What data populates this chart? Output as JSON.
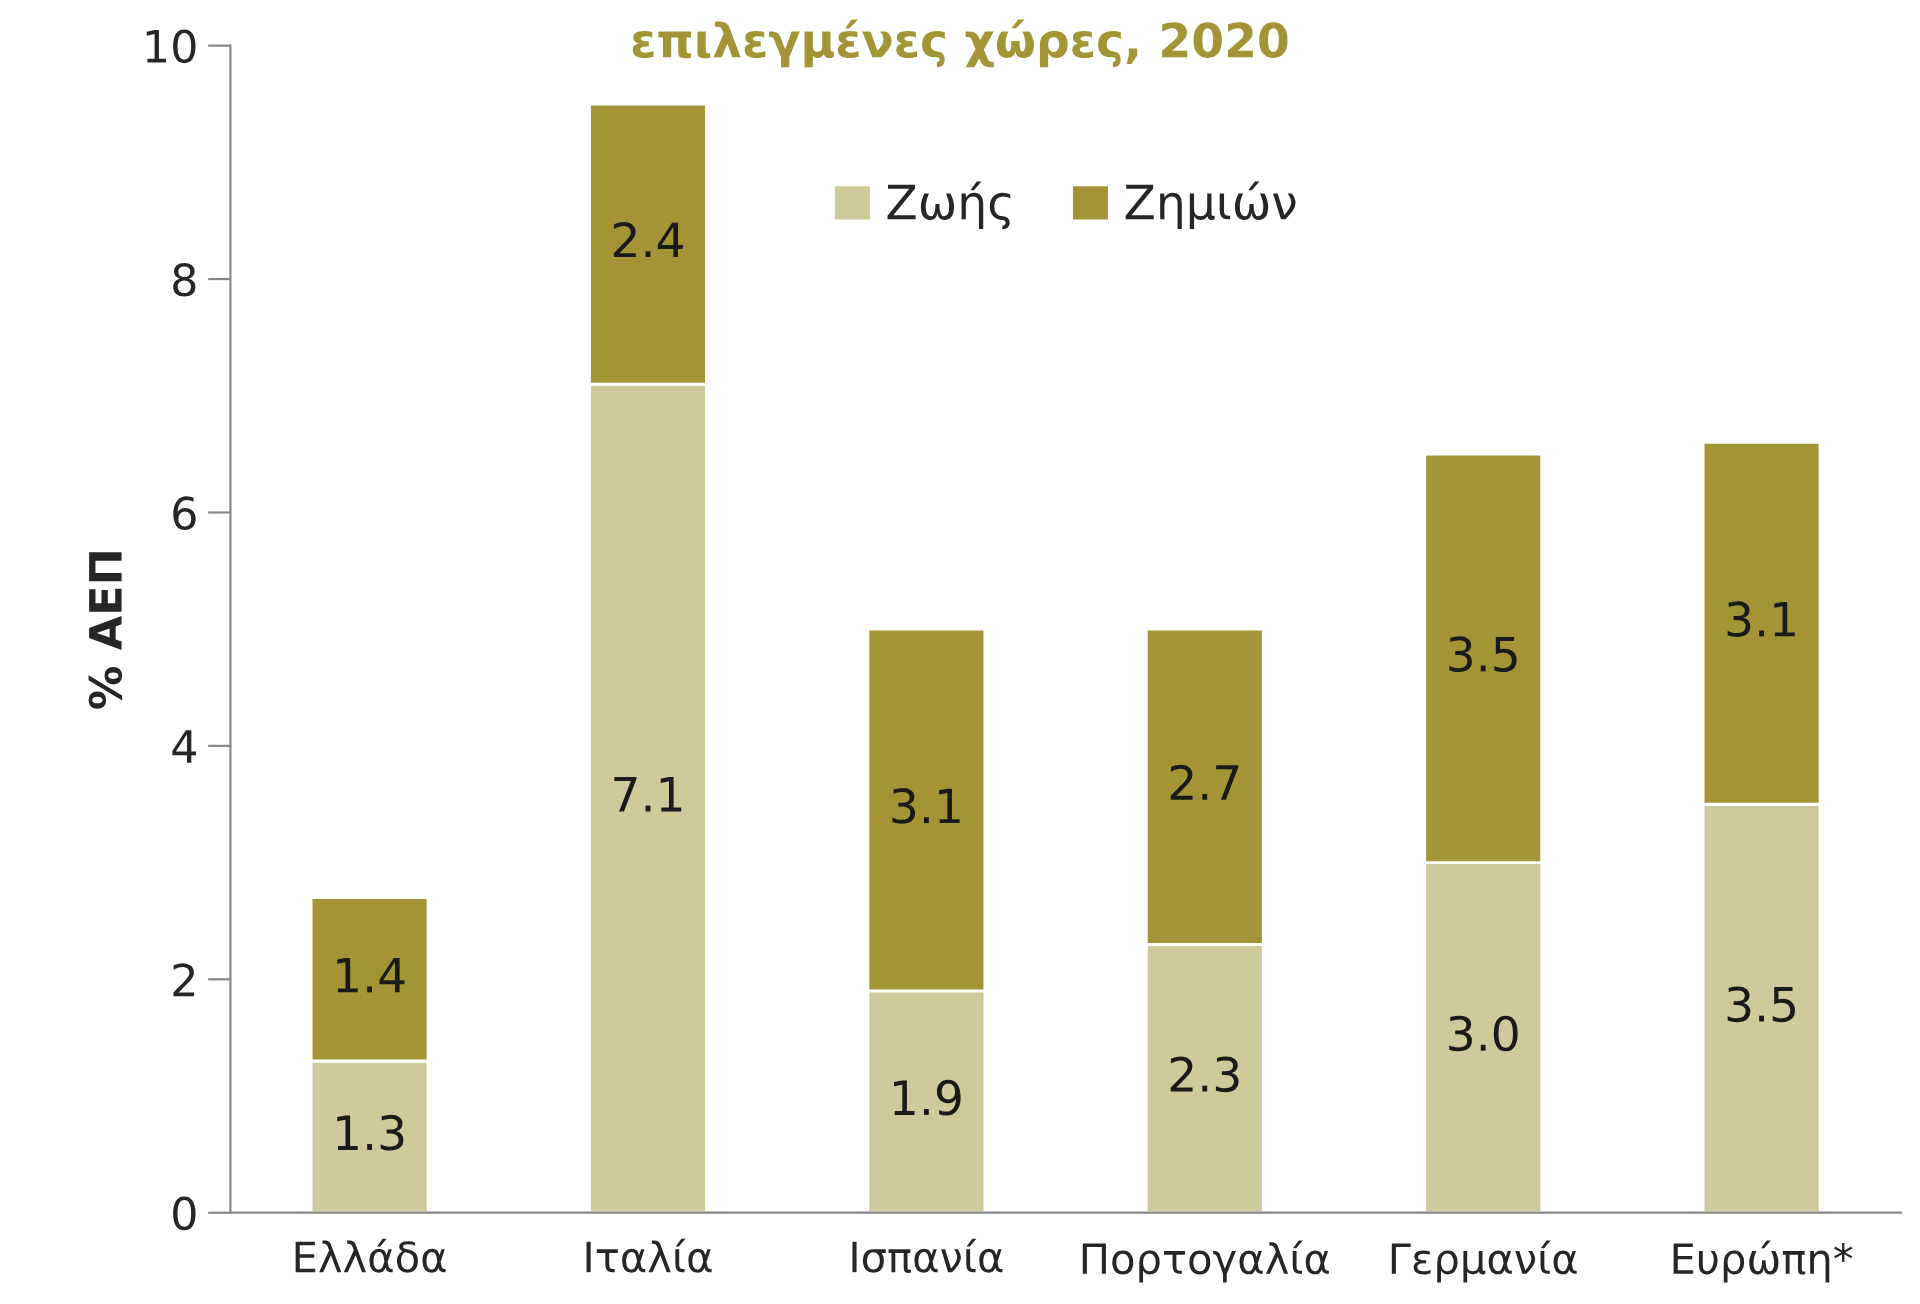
{
  "chart_data": {
    "type": "bar",
    "title": "επιλεγμένες χώρες, 2020",
    "ylabel": "% ΑΕΠ",
    "categories": [
      "Ελλάδα",
      "Ιταλία",
      "Ισπανία",
      "Πορτογαλία",
      "Γερμανία",
      "Ευρώπη*"
    ],
    "series": [
      {
        "name": "Ζωής",
        "color": "#cfca9b",
        "values": [
          1.3,
          7.1,
          1.9,
          2.3,
          3.0,
          3.5
        ],
        "value_labels": [
          "1.3",
          "7.1",
          "1.9",
          "2.3",
          "3.0",
          "3.5"
        ]
      },
      {
        "name": "Ζημιών",
        "color": "#a39536",
        "values": [
          1.4,
          2.4,
          3.1,
          2.7,
          3.5,
          3.1
        ],
        "value_labels": [
          "1.4",
          "2.4",
          "3.1",
          "2.7",
          "3.5",
          "3.1"
        ]
      }
    ],
    "stacked": true,
    "ylim": [
      0,
      10
    ],
    "yticks": [
      0,
      2,
      4,
      6,
      8,
      10
    ],
    "grid": false,
    "legend": "top"
  }
}
